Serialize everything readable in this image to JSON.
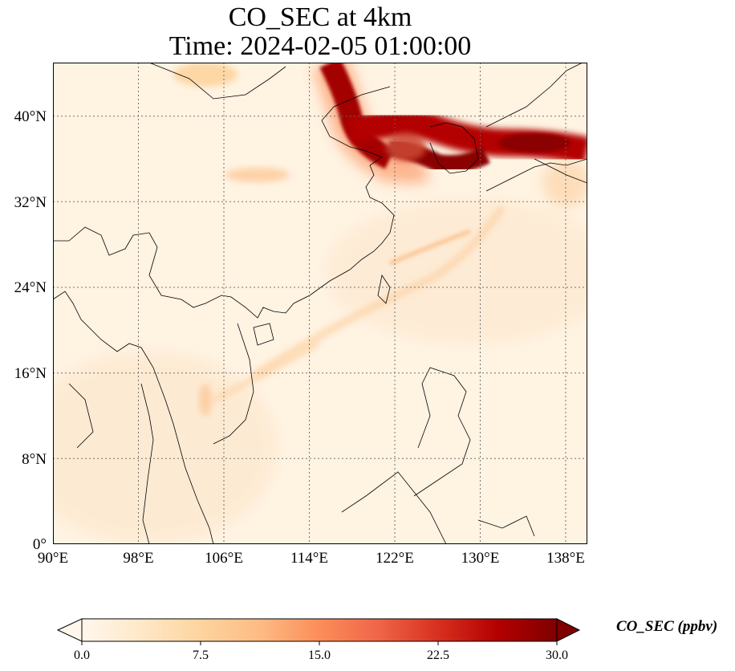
{
  "title": {
    "line1": "CO_SEC at 4km",
    "line2": "Time: 2024-02-05 01:00:00"
  },
  "map": {
    "lon_range": [
      90,
      140
    ],
    "lat_range": [
      0,
      45
    ],
    "lon_ticks": [
      "90°E",
      "98°E",
      "106°E",
      "114°E",
      "122°E",
      "130°E",
      "138°E"
    ],
    "lat_ticks": [
      "0°",
      "8°N",
      "16°N",
      "24°N",
      "32°N",
      "40°N"
    ],
    "gridlines": true,
    "coastlines": true,
    "country_borders": true
  },
  "colorbar": {
    "label": "CO_SEC (ppbv)",
    "colormap": "OrRd",
    "ticks": [
      "0.0",
      "7.5",
      "15.0",
      "22.5",
      "30.0"
    ],
    "range": [
      0,
      30
    ],
    "extend": "both",
    "colors": [
      "#fff7ec",
      "#fee8c8",
      "#fdd49e",
      "#fdbb84",
      "#fc8d59",
      "#ef6548",
      "#d7301f",
      "#b30000",
      "#7f0000"
    ]
  }
}
